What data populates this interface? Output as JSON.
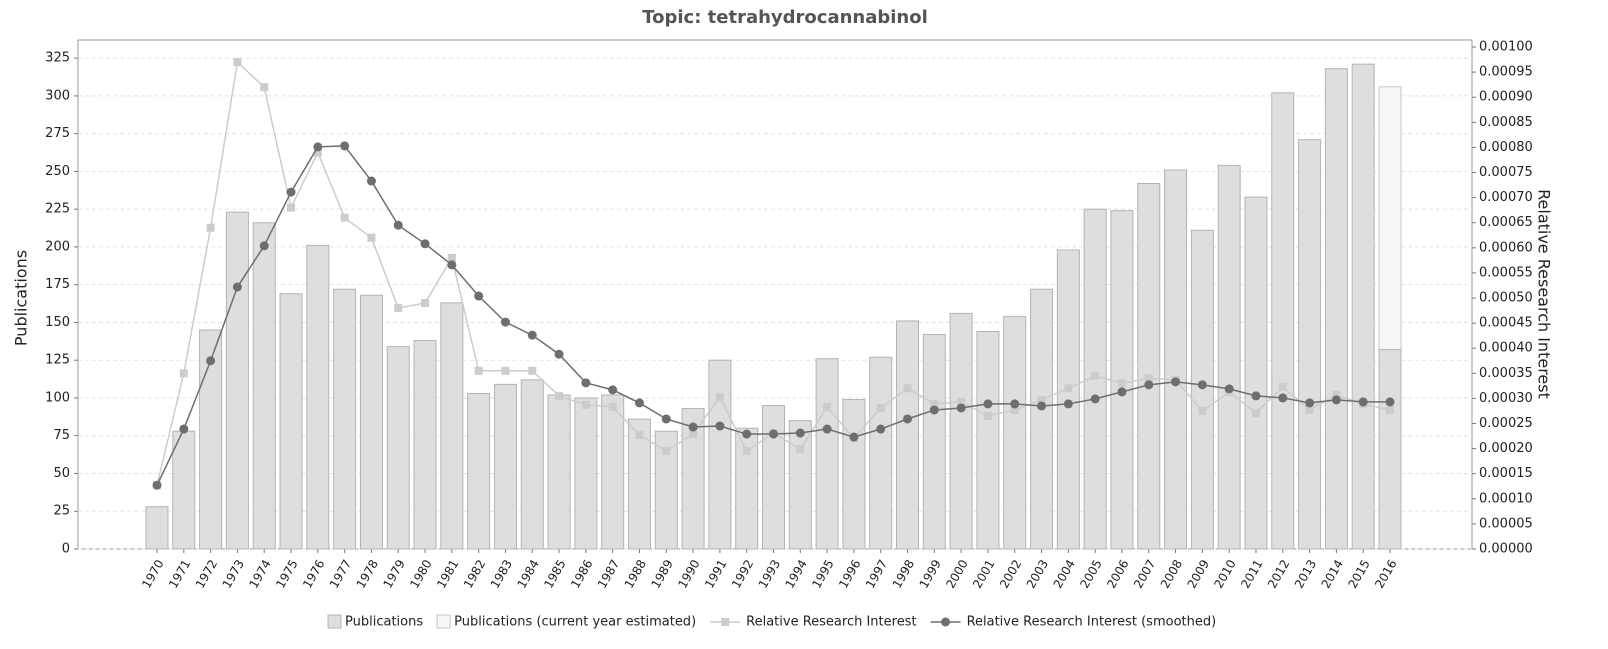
{
  "chart_data": {
    "type": "bar",
    "title": "Topic: tetrahydrocannabinol",
    "y_label": "Publications",
    "y2_label": "Relative Research Interest",
    "categories": [
      "1970",
      "1971",
      "1972",
      "1973",
      "1974",
      "1975",
      "1976",
      "1977",
      "1978",
      "1979",
      "1980",
      "1981",
      "1982",
      "1983",
      "1984",
      "1985",
      "1986",
      "1987",
      "1988",
      "1989",
      "1990",
      "1991",
      "1992",
      "1993",
      "1994",
      "1995",
      "1996",
      "1997",
      "1998",
      "1999",
      "2000",
      "2001",
      "2002",
      "2003",
      "2004",
      "2005",
      "2006",
      "2007",
      "2008",
      "2009",
      "2010",
      "2011",
      "2012",
      "2013",
      "2014",
      "2015",
      "2016"
    ],
    "series": [
      {
        "name": "Publications",
        "type": "bar",
        "color": "#dedede",
        "stroke": "#b4b4b4",
        "values": [
          28,
          78,
          145,
          223,
          216,
          169,
          201,
          172,
          168,
          134,
          138,
          163,
          103,
          109,
          112,
          102,
          100,
          102,
          86,
          78,
          93,
          125,
          80,
          95,
          85,
          126,
          99,
          127,
          151,
          142,
          156,
          144,
          154,
          172,
          198,
          225,
          224,
          242,
          251,
          211,
          254,
          233,
          302,
          271,
          318,
          321,
          132
        ]
      },
      {
        "name": "Publications (current year estimated)",
        "type": "bar",
        "color": "#f6f6f6",
        "stroke": "#c8c8c8",
        "values": [
          null,
          null,
          null,
          null,
          null,
          null,
          null,
          null,
          null,
          null,
          null,
          null,
          null,
          null,
          null,
          null,
          null,
          null,
          null,
          null,
          null,
          null,
          null,
          null,
          null,
          null,
          null,
          null,
          null,
          null,
          null,
          null,
          null,
          null,
          null,
          null,
          null,
          null,
          null,
          null,
          null,
          null,
          null,
          null,
          null,
          null,
          306
        ]
      },
      {
        "name": "Relative Research Interest",
        "type": "line",
        "axis": "y2",
        "color": "#cccccc",
        "marker": "square",
        "values": [
          0.000127,
          0.00035,
          0.00064,
          0.00097,
          0.00092,
          0.00068,
          0.00079,
          0.00066,
          0.00062,
          0.00048,
          0.00049,
          0.00058,
          0.000355,
          0.000355,
          0.000355,
          0.000305,
          0.000287,
          0.000283,
          0.000227,
          0.000195,
          0.000229,
          0.000303,
          0.000195,
          0.000231,
          0.000199,
          0.000283,
          0.000221,
          0.000281,
          0.00032,
          0.000289,
          0.000293,
          0.000265,
          0.000277,
          0.000297,
          0.00032,
          0.000345,
          0.00033,
          0.00034,
          0.000337,
          0.000275,
          0.000313,
          0.000271,
          0.000323,
          0.000277,
          0.000307,
          0.000289,
          0.000277
        ]
      },
      {
        "name": "Relative Research Interest (smoothed)",
        "type": "line",
        "axis": "y2",
        "color": "#6e6e6e",
        "marker": "circle",
        "values": [
          0.000127,
          0.000239,
          0.000375,
          0.000522,
          0.000604,
          0.000711,
          0.000801,
          0.000803,
          0.000733,
          0.000645,
          0.000608,
          0.000566,
          0.000504,
          0.000452,
          0.000426,
          0.000388,
          0.000331,
          0.000317,
          0.000291,
          0.000259,
          0.000243,
          0.000245,
          0.000229,
          0.000229,
          0.000231,
          0.000239,
          0.000223,
          0.000239,
          0.000259,
          0.000277,
          0.000281,
          0.000289,
          0.000289,
          0.000285,
          0.000289,
          0.000299,
          0.000313,
          0.000327,
          0.000333,
          0.000327,
          0.000319,
          0.000305,
          0.000301,
          0.000291,
          0.000297,
          0.000293,
          0.000293
        ]
      }
    ],
    "ylim": [
      0,
      337
    ],
    "yticks": [
      0,
      25,
      50,
      75,
      100,
      125,
      150,
      175,
      200,
      225,
      250,
      275,
      300,
      325
    ],
    "y2lim": [
      0,
      0.001014
    ],
    "y2ticks": [
      {
        "value": 0,
        "label": "0.00000"
      },
      {
        "value": 5e-05,
        "label": "0.00005"
      },
      {
        "value": 0.0001,
        "label": "0.00010"
      },
      {
        "value": 0.00015,
        "label": "0.00015"
      },
      {
        "value": 0.0002,
        "label": "0.00020"
      },
      {
        "value": 0.00025,
        "label": "0.00025"
      },
      {
        "value": 0.0003,
        "label": "0.00030"
      },
      {
        "value": 0.00035,
        "label": "0.00035"
      },
      {
        "value": 0.0004,
        "label": "0.00040"
      },
      {
        "value": 0.00045,
        "label": "0.00045"
      },
      {
        "value": 0.0005,
        "label": "0.00050"
      },
      {
        "value": 0.00055,
        "label": "0.00055"
      },
      {
        "value": 0.0006,
        "label": "0.00060"
      },
      {
        "value": 0.00065,
        "label": "0.00065"
      },
      {
        "value": 0.0007,
        "label": "0.00070"
      },
      {
        "value": 0.00075,
        "label": "0.00075"
      },
      {
        "value": 0.0008,
        "label": "0.00080"
      },
      {
        "value": 0.00085,
        "label": "0.00085"
      },
      {
        "value": 0.0009,
        "label": "0.00090"
      },
      {
        "value": 0.00095,
        "label": "0.00095"
      },
      {
        "value": 0.001,
        "label": "0.00100"
      }
    ],
    "grid": true,
    "legend": "bottom"
  }
}
